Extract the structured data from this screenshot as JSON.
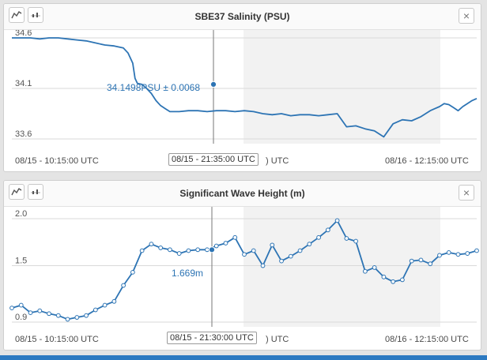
{
  "colors": {
    "line": "#2d74b4",
    "shade": "#f2f2f2",
    "grid": "#d9d9d9",
    "bar": "#2d7ac1"
  },
  "panels": [
    {
      "title": "SBE37 Salinity (PSU)",
      "toolbar": {
        "line_icon": "line-chart-icon",
        "scatter_icon": "scatter-chart-icon",
        "close_icon": "close-icon"
      },
      "close_label": "×",
      "y_ticks": [
        "34.6",
        "34.1",
        "33.6"
      ],
      "x_start": "08/15 - 10:15:00 UTC",
      "x_mid_suffix": ") UTC",
      "x_end": "08/16 - 12:15:00 UTC",
      "cursor_time": "08/15 - 21:35:00 UTC",
      "cursor_value": "34.1498PSU ± 0.0068"
    },
    {
      "title": "Significant Wave Height (m)",
      "toolbar": {
        "line_icon": "line-chart-icon",
        "scatter_icon": "scatter-chart-icon",
        "close_icon": "close-icon"
      },
      "close_label": "×",
      "y_ticks": [
        "2.0",
        "1.5",
        "0.9"
      ],
      "x_start": "08/15 - 10:15:00 UTC",
      "x_mid_suffix": ") UTC",
      "x_end": "08/16 - 12:15:00 UTC",
      "cursor_time": "08/15 - 21:30:00 UTC",
      "cursor_value": "1.669m"
    }
  ],
  "chart_data": [
    {
      "type": "line",
      "ylim": [
        33.6,
        34.6
      ],
      "yticks": [
        34.6,
        34.1,
        33.6
      ],
      "x": [
        0,
        4,
        8,
        12,
        16,
        20,
        24,
        28,
        32,
        36,
        40,
        44,
        48,
        50,
        52,
        53,
        54,
        56,
        58,
        60,
        62,
        64,
        66,
        68,
        72,
        76,
        80,
        84,
        88,
        92,
        96,
        100,
        104,
        108,
        112,
        116,
        120,
        124,
        128,
        132,
        136,
        140,
        144,
        148,
        152,
        156,
        160,
        164,
        168,
        172,
        176,
        178,
        180,
        182,
        184,
        186,
        188,
        190,
        192,
        194,
        196,
        198,
        200
      ],
      "values": [
        34.6,
        34.6,
        34.6,
        34.59,
        34.6,
        34.6,
        34.59,
        34.58,
        34.57,
        34.55,
        34.53,
        34.52,
        34.5,
        34.45,
        34.35,
        34.2,
        34.15,
        34.14,
        34.1,
        34.05,
        33.98,
        33.93,
        33.9,
        33.87,
        33.87,
        33.88,
        33.88,
        33.87,
        33.88,
        33.88,
        33.87,
        33.88,
        33.87,
        33.85,
        33.84,
        33.85,
        33.83,
        33.84,
        33.84,
        33.83,
        33.84,
        33.85,
        33.72,
        33.73,
        33.7,
        33.68,
        33.62,
        33.75,
        33.79,
        33.78,
        33.82,
        33.85,
        33.88,
        33.9,
        33.92,
        33.95,
        33.94,
        33.91,
        33.88,
        33.92,
        33.95,
        33.98,
        34.0
      ]
    },
    {
      "type": "line",
      "ylim": [
        0.9,
        2.0
      ],
      "yticks": [
        2.0,
        1.5,
        0.9
      ],
      "x": [
        0,
        4,
        8,
        12,
        16,
        20,
        24,
        28,
        32,
        36,
        40,
        44,
        48,
        52,
        56,
        60,
        64,
        68,
        72,
        76,
        80,
        84,
        88,
        92,
        96,
        100,
        104,
        108,
        112,
        116,
        120,
        124,
        128,
        132,
        136,
        140,
        144,
        148,
        152,
        156,
        160,
        164,
        168,
        172,
        176,
        180,
        184,
        188,
        192,
        196,
        200
      ],
      "values": [
        1.05,
        1.08,
        1.0,
        1.02,
        0.99,
        0.97,
        0.93,
        0.95,
        0.97,
        1.03,
        1.08,
        1.12,
        1.29,
        1.43,
        1.66,
        1.73,
        1.69,
        1.67,
        1.63,
        1.66,
        1.67,
        1.67,
        1.71,
        1.74,
        1.8,
        1.62,
        1.66,
        1.5,
        1.72,
        1.55,
        1.6,
        1.66,
        1.73,
        1.8,
        1.88,
        1.98,
        1.79,
        1.76,
        1.44,
        1.48,
        1.38,
        1.33,
        1.35,
        1.55,
        1.56,
        1.52,
        1.61,
        1.64,
        1.62,
        1.63,
        1.66
      ]
    }
  ]
}
